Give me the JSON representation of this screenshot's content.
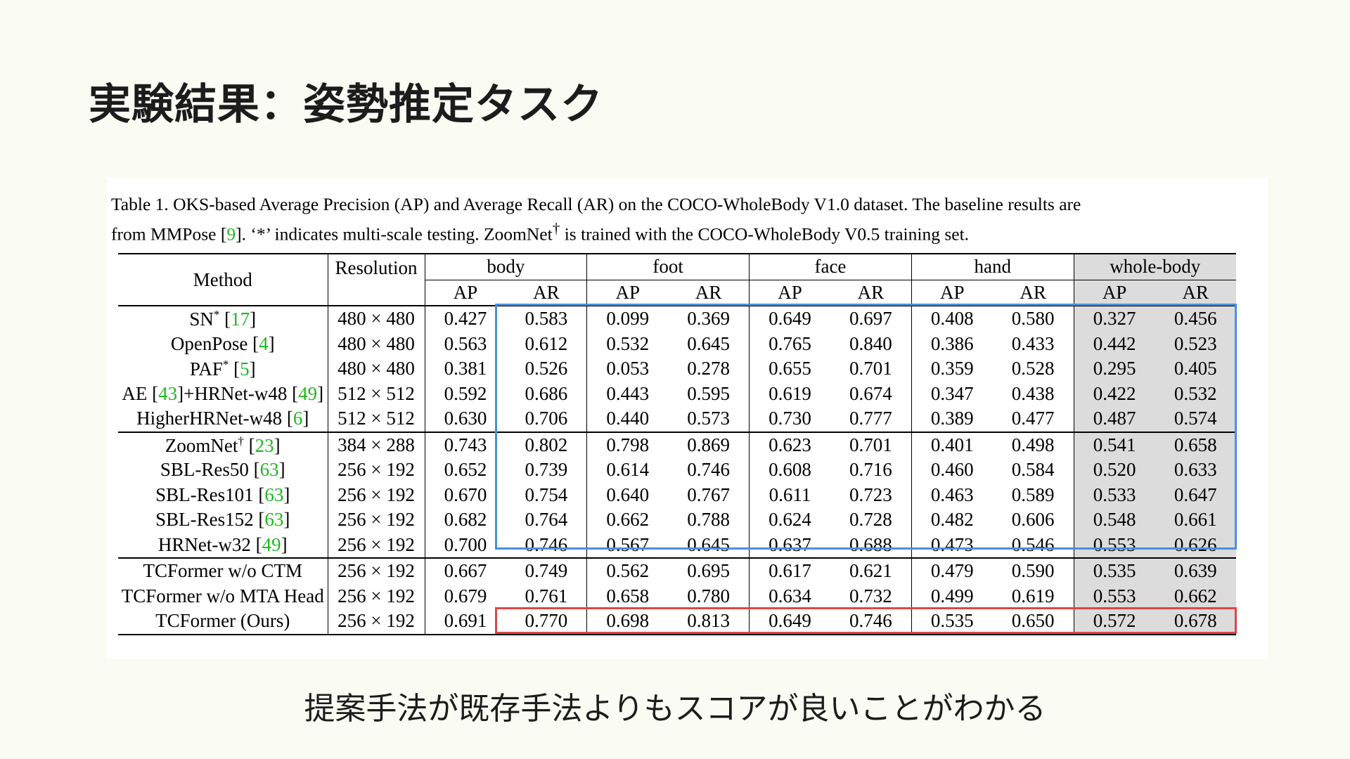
{
  "slide": {
    "title": "実験結果：姿勢推定タスク",
    "conclusion": "提案手法が既存手法よりもスコアが良いことがわかる"
  },
  "caption": {
    "part1": "Table 1.  OKS-based Average Precision (AP) and Average Recall (AR) on the COCO-WholeBody V1.0 dataset.  The baseline results are",
    "part2": "from MMPose [",
    "cite": "9",
    "part3": "]. ‘*’ indicates multi-scale testing. ZoomNet",
    "dagger": "†",
    "part4": " is trained with the COCO-WholeBody V0.5 training set."
  },
  "table": {
    "method_header": "Method",
    "resolution_header": "Resolution",
    "groups": [
      "body",
      "foot",
      "face",
      "hand",
      "whole-body"
    ],
    "sub_headers": [
      "AP",
      "AR"
    ],
    "rows": [
      {
        "name": "SN",
        "sup": "*",
        "cite": "17",
        "tail": "",
        "cite2": "",
        "res": "480 × 480",
        "vals": [
          "0.427",
          "0.583",
          "0.099",
          "0.369",
          "0.649",
          "0.697",
          "0.408",
          "0.580",
          "0.327",
          "0.456"
        ]
      },
      {
        "name": "OpenPose",
        "sup": "",
        "cite": "4",
        "tail": "",
        "cite2": "",
        "res": "480 × 480",
        "vals": [
          "0.563",
          "0.612",
          "0.532",
          "0.645",
          "0.765",
          "0.840",
          "0.386",
          "0.433",
          "0.442",
          "0.523"
        ]
      },
      {
        "name": "PAF",
        "sup": "*",
        "cite": "5",
        "tail": "",
        "cite2": "",
        "res": "480 × 480",
        "vals": [
          "0.381",
          "0.526",
          "0.053",
          "0.278",
          "0.655",
          "0.701",
          "0.359",
          "0.528",
          "0.295",
          "0.405"
        ]
      },
      {
        "name": "AE",
        "sup": "",
        "cite": "43",
        "tail": "+HRNet-w48",
        "cite2": "49",
        "res": "512 × 512",
        "vals": [
          "0.592",
          "0.686",
          "0.443",
          "0.595",
          "0.619",
          "0.674",
          "0.347",
          "0.438",
          "0.422",
          "0.532"
        ]
      },
      {
        "name": "HigherHRNet-w48",
        "sup": "",
        "cite": "6",
        "tail": "",
        "cite2": "",
        "res": "512 × 512",
        "vals": [
          "0.630",
          "0.706",
          "0.440",
          "0.573",
          "0.730",
          "0.777",
          "0.389",
          "0.477",
          "0.487",
          "0.574"
        ]
      },
      {
        "name": "ZoomNet",
        "sup": "†",
        "cite": "23",
        "tail": "",
        "cite2": "",
        "res": "384 × 288",
        "vals": [
          "0.743",
          "0.802",
          "0.798",
          "0.869",
          "0.623",
          "0.701",
          "0.401",
          "0.498",
          "0.541",
          "0.658"
        ]
      },
      {
        "name": "SBL-Res50",
        "sup": "",
        "cite": "63",
        "tail": "",
        "cite2": "",
        "res": "256 × 192",
        "vals": [
          "0.652",
          "0.739",
          "0.614",
          "0.746",
          "0.608",
          "0.716",
          "0.460",
          "0.584",
          "0.520",
          "0.633"
        ]
      },
      {
        "name": "SBL-Res101",
        "sup": "",
        "cite": "63",
        "tail": "",
        "cite2": "",
        "res": "256 × 192",
        "vals": [
          "0.670",
          "0.754",
          "0.640",
          "0.767",
          "0.611",
          "0.723",
          "0.463",
          "0.589",
          "0.533",
          "0.647"
        ]
      },
      {
        "name": "SBL-Res152",
        "sup": "",
        "cite": "63",
        "tail": "",
        "cite2": "",
        "res": "256 × 192",
        "vals": [
          "0.682",
          "0.764",
          "0.662",
          "0.788",
          "0.624",
          "0.728",
          "0.482",
          "0.606",
          "0.548",
          "0.661"
        ]
      },
      {
        "name": "HRNet-w32",
        "sup": "",
        "cite": "49",
        "tail": "",
        "cite2": "",
        "res": "256 × 192",
        "vals": [
          "0.700",
          "0.746",
          "0.567",
          "0.645",
          "0.637",
          "0.688",
          "0.473",
          "0.546",
          "0.553",
          "0.626"
        ]
      },
      {
        "name": "TCFormer w/o CTM",
        "sup": "",
        "cite": "",
        "tail": "",
        "cite2": "",
        "res": "256 × 192",
        "vals": [
          "0.667",
          "0.749",
          "0.562",
          "0.695",
          "0.617",
          "0.621",
          "0.479",
          "0.590",
          "0.535",
          "0.639"
        ]
      },
      {
        "name": "TCFormer w/o MTA Head",
        "sup": "",
        "cite": "",
        "tail": "",
        "cite2": "",
        "res": "256 × 192",
        "vals": [
          "0.679",
          "0.761",
          "0.658",
          "0.780",
          "0.634",
          "0.732",
          "0.499",
          "0.619",
          "0.553",
          "0.662"
        ]
      },
      {
        "name": "TCFormer (Ours)",
        "sup": "",
        "cite": "",
        "tail": "",
        "cite2": "",
        "res": "256 × 192",
        "vals": [
          "0.691",
          "0.770",
          "0.698",
          "0.813",
          "0.649",
          "0.746",
          "0.535",
          "0.650",
          "0.572",
          "0.678"
        ]
      }
    ]
  },
  "colors": {
    "citation": "#1db81d",
    "baseline_highlight": "#4a90d9",
    "ours_highlight": "#d94848",
    "whole_body_shade": "#dcdcdc"
  }
}
